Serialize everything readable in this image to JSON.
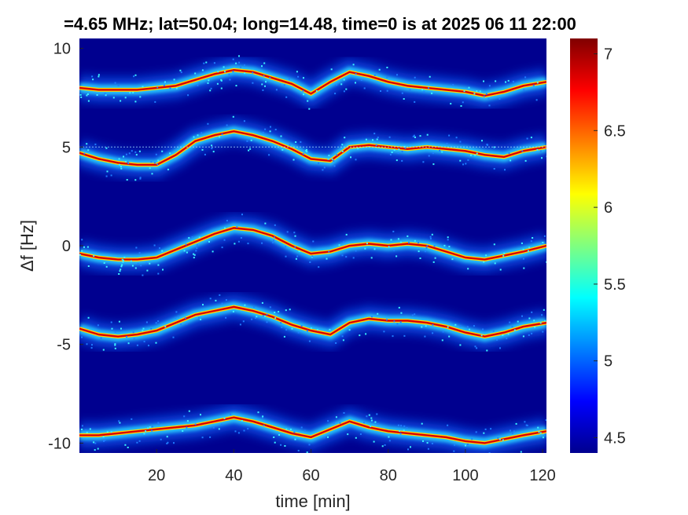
{
  "chart_data": {
    "type": "heatmap",
    "title": "=4.65 MHz;  lat=50.04; long=14.48, time=0 is at 2025 06 11 22:00",
    "xlabel": "time [min]",
    "ylabel": "Δf [Hz]",
    "xlim": [
      0,
      121
    ],
    "ylim": [
      -10.5,
      10.5
    ],
    "x_ticks": [
      20,
      40,
      60,
      80,
      100,
      120
    ],
    "y_ticks": [
      10,
      5,
      0,
      -5,
      -10
    ],
    "x_tick_labels": [
      "20",
      "40",
      "60",
      "80",
      "100",
      "120"
    ],
    "y_tick_labels": [
      "10",
      "5",
      "0",
      "-5",
      "-10"
    ],
    "colormap": "jet",
    "background_color": "#00008f",
    "colorbar": {
      "range": [
        4.4,
        7.1
      ],
      "ticks": [
        7,
        6.5,
        6,
        5.5,
        5,
        4.5
      ],
      "tick_labels": [
        "7",
        "6.5",
        "6",
        "5.5",
        "5",
        "4.5"
      ]
    },
    "series": [
      {
        "offset": 8,
        "time": [
          0,
          5,
          10,
          15,
          20,
          25,
          30,
          35,
          40,
          45,
          50,
          55,
          60,
          65,
          70,
          75,
          80,
          85,
          90,
          95,
          100,
          105,
          110,
          115,
          121
        ],
        "df": [
          8.0,
          7.9,
          7.9,
          7.9,
          8.0,
          8.1,
          8.4,
          8.7,
          8.9,
          8.8,
          8.5,
          8.2,
          7.7,
          8.3,
          8.8,
          8.6,
          8.3,
          8.1,
          8.0,
          7.9,
          7.8,
          7.6,
          7.8,
          8.1,
          8.3
        ]
      },
      {
        "offset": 5,
        "time": [
          0,
          5,
          10,
          15,
          20,
          25,
          30,
          35,
          40,
          45,
          50,
          55,
          60,
          65,
          70,
          75,
          80,
          85,
          90,
          95,
          100,
          105,
          110,
          115,
          121
        ],
        "df": [
          4.7,
          4.4,
          4.2,
          4.1,
          4.1,
          4.6,
          5.3,
          5.6,
          5.8,
          5.6,
          5.3,
          4.9,
          4.4,
          4.3,
          5.0,
          5.1,
          5.0,
          4.9,
          5.0,
          4.9,
          4.8,
          4.6,
          4.5,
          4.8,
          5.0
        ]
      },
      {
        "offset": 0,
        "time": [
          0,
          5,
          10,
          15,
          20,
          25,
          30,
          35,
          40,
          45,
          50,
          55,
          60,
          65,
          70,
          75,
          80,
          85,
          90,
          95,
          100,
          105,
          110,
          115,
          121
        ],
        "df": [
          -0.4,
          -0.6,
          -0.7,
          -0.7,
          -0.6,
          -0.2,
          0.2,
          0.6,
          0.9,
          0.8,
          0.5,
          0.0,
          -0.4,
          -0.3,
          0.0,
          0.1,
          0.0,
          0.1,
          0.0,
          -0.3,
          -0.6,
          -0.7,
          -0.5,
          -0.3,
          0.0
        ]
      },
      {
        "offset": -5,
        "time": [
          0,
          5,
          10,
          15,
          20,
          25,
          30,
          35,
          40,
          45,
          50,
          55,
          60,
          65,
          70,
          75,
          80,
          85,
          90,
          95,
          100,
          105,
          110,
          115,
          121
        ],
        "df": [
          -4.2,
          -4.5,
          -4.6,
          -4.5,
          -4.3,
          -3.9,
          -3.5,
          -3.3,
          -3.1,
          -3.3,
          -3.6,
          -4.0,
          -4.3,
          -4.5,
          -3.9,
          -3.7,
          -3.8,
          -3.8,
          -3.9,
          -4.1,
          -4.4,
          -4.6,
          -4.4,
          -4.1,
          -3.9
        ]
      },
      {
        "offset": -10,
        "time": [
          0,
          5,
          10,
          15,
          20,
          25,
          30,
          35,
          40,
          45,
          50,
          55,
          60,
          65,
          70,
          75,
          80,
          85,
          90,
          95,
          100,
          105,
          110,
          115,
          121
        ],
        "df": [
          -9.6,
          -9.6,
          -9.5,
          -9.4,
          -9.3,
          -9.2,
          -9.1,
          -8.9,
          -8.7,
          -8.9,
          -9.2,
          -9.5,
          -9.7,
          -9.3,
          -8.9,
          -9.2,
          -9.4,
          -9.5,
          -9.6,
          -9.7,
          -9.9,
          -10.0,
          -9.8,
          -9.6,
          -9.4
        ]
      }
    ]
  }
}
